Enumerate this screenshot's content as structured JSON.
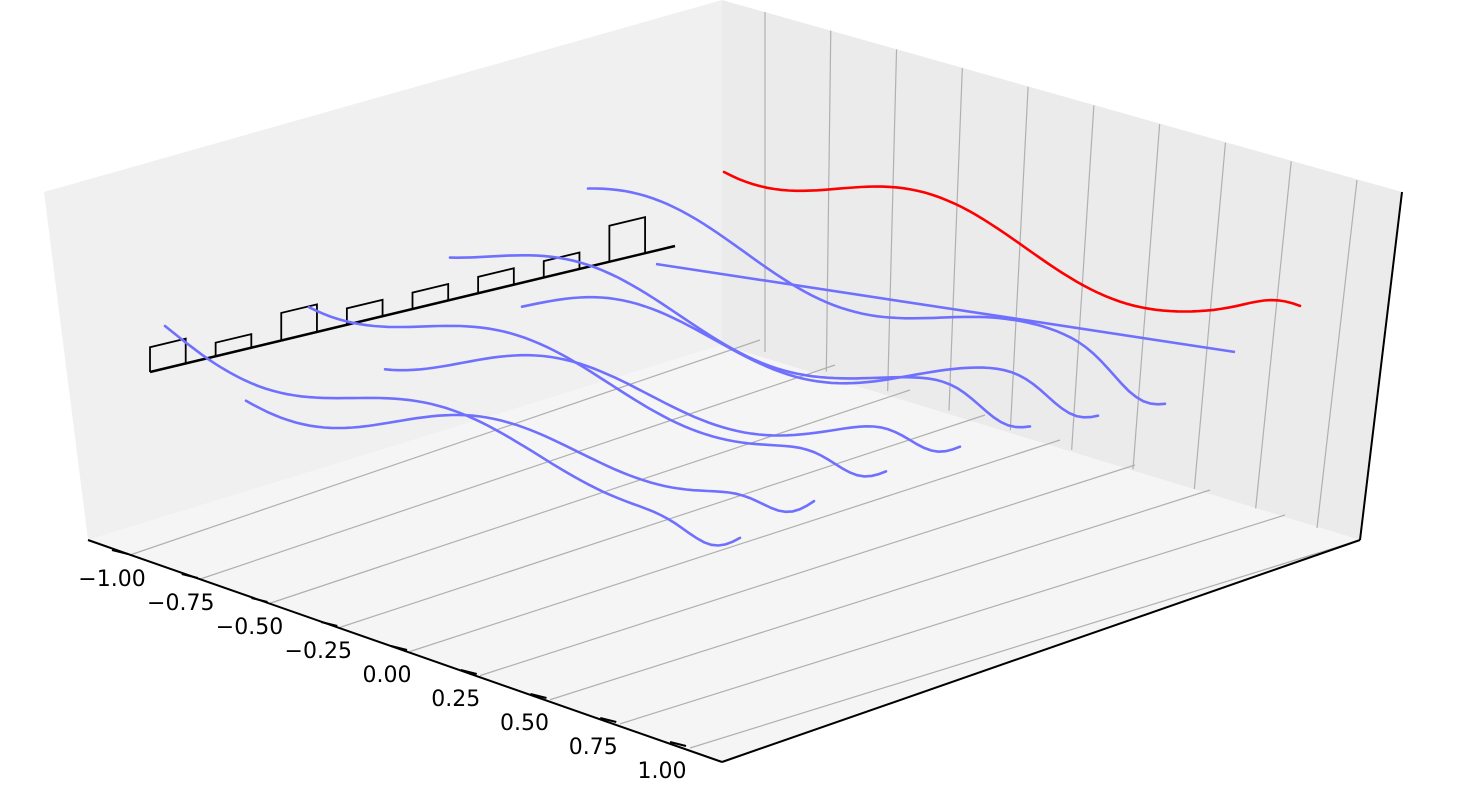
{
  "chart_data": {
    "type": "line",
    "projection": "3d",
    "title": "",
    "xlabel": "",
    "ylabel": "",
    "zlabel": "",
    "x_ticks": [
      "−1.00",
      "−0.75",
      "−0.50",
      "−0.25",
      "0.00",
      "0.25",
      "0.50",
      "0.75",
      "1.00"
    ],
    "xlim": [
      -1,
      1
    ],
    "grid": true,
    "colors": {
      "curves": "#7070ff",
      "highlight": "#ff0000",
      "bars": "#000000",
      "pane_back": "#f0f0f0",
      "pane_side": "#ebebeb",
      "pane_floor": "#f5f5f5",
      "grid": "#b0b0b0"
    },
    "wave_series": [
      {
        "offset": 0
      },
      {
        "offset": 1
      },
      {
        "offset": 2
      },
      {
        "offset": 3
      },
      {
        "offset": 4
      },
      {
        "offset": 5
      },
      {
        "offset": 6
      }
    ],
    "highlight_series": {
      "offset": 7
    },
    "bars": [
      {
        "position": 0,
        "height": 0.6
      },
      {
        "position": 1,
        "height": 0.2
      },
      {
        "position": 2,
        "height": 0.7
      },
      {
        "position": 3,
        "height": 0.3
      },
      {
        "position": 4,
        "height": 0.3
      },
      {
        "position": 5,
        "height": 0.3
      },
      {
        "position": 6,
        "height": 0.3
      },
      {
        "position": 7,
        "height": 1.0
      }
    ]
  }
}
